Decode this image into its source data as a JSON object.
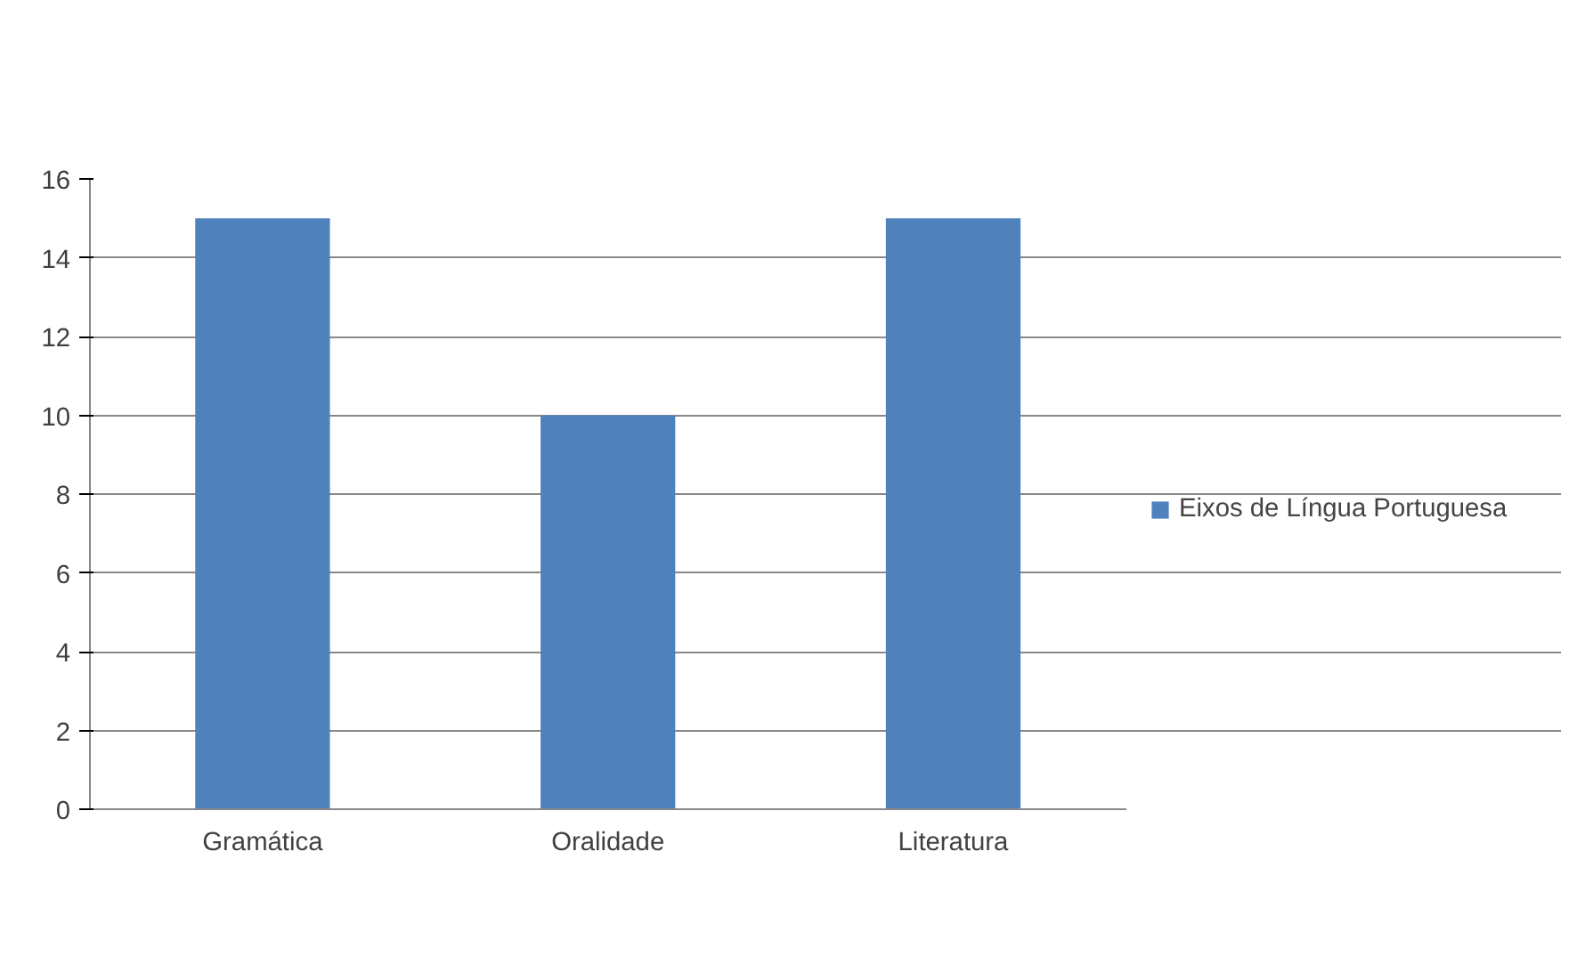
{
  "chart_data": {
    "type": "bar",
    "categories": [
      "Gramática",
      "Oralidade",
      "Literatura"
    ],
    "series": [
      {
        "name": "Eixos de Língua Portuguesa",
        "color": "#4f81bd",
        "values": [
          15,
          10,
          15
        ]
      }
    ],
    "ylim": [
      0,
      16
    ],
    "yticks": [
      0,
      2,
      4,
      6,
      8,
      10,
      12,
      14,
      16
    ],
    "grid": "y",
    "legend": "right"
  }
}
